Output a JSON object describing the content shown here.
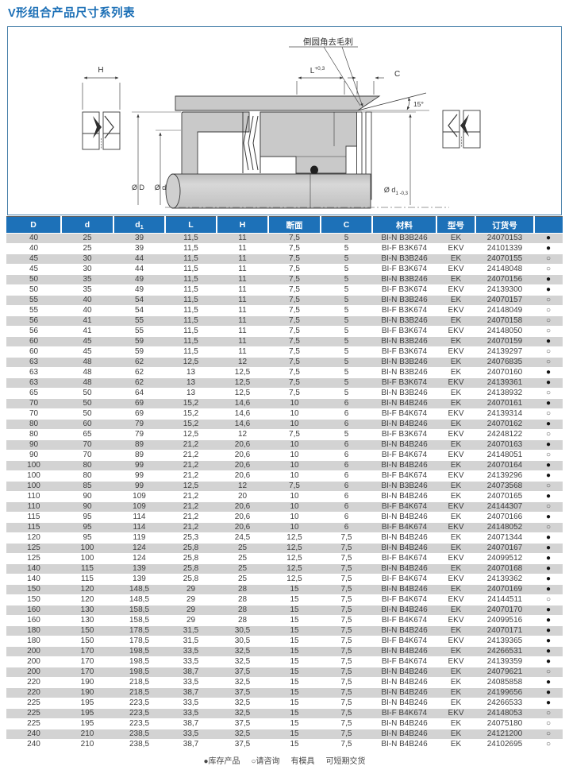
{
  "page": {
    "title": "V形组合产品尺寸系列表"
  },
  "diagram": {
    "labels": {
      "h": "H",
      "deburr": "倒圆角去毛刺",
      "angle": "15°",
      "c": "C",
      "dia_outer": "Ø D",
      "dia_inner": "Ø d"
    },
    "dim_l": {
      "base": "L",
      "sup": "+0,3"
    },
    "dim_d1": {
      "base": "Ø d",
      "sub": "1",
      "tol": " -0,3"
    }
  },
  "table": {
    "headers": [
      {
        "t": "D"
      },
      {
        "t": "d"
      },
      {
        "t": "d",
        "sub": "1"
      },
      {
        "t": "L"
      },
      {
        "t": "H"
      },
      {
        "t": "断面"
      },
      {
        "t": "C"
      },
      {
        "t": "材料"
      },
      {
        "t": "型号"
      },
      {
        "t": "订货号"
      },
      {
        "t": ""
      }
    ],
    "rows": [
      [
        "40",
        "25",
        "39",
        "11,5",
        "11",
        "7,5",
        "5",
        "BI-N B3B246",
        "EK",
        "24070153",
        "●"
      ],
      [
        "40",
        "25",
        "39",
        "11,5",
        "11",
        "7,5",
        "5",
        "BI-F B3K674",
        "EKV",
        "24101339",
        "●"
      ],
      [
        "45",
        "30",
        "44",
        "11,5",
        "11",
        "7,5",
        "5",
        "BI-N B3B246",
        "EK",
        "24070155",
        "○"
      ],
      [
        "45",
        "30",
        "44",
        "11,5",
        "11",
        "7,5",
        "5",
        "BI-F B3K674",
        "EKV",
        "24148048",
        "○"
      ],
      [
        "50",
        "35",
        "49",
        "11,5",
        "11",
        "7,5",
        "5",
        "BI-N B3B246",
        "EK",
        "24070156",
        "●"
      ],
      [
        "50",
        "35",
        "49",
        "11,5",
        "11",
        "7,5",
        "5",
        "BI-F B3K674",
        "EKV",
        "24139300",
        "●"
      ],
      [
        "55",
        "40",
        "54",
        "11,5",
        "11",
        "7,5",
        "5",
        "BI-N B3B246",
        "EK",
        "24070157",
        "○"
      ],
      [
        "55",
        "40",
        "54",
        "11,5",
        "11",
        "7,5",
        "5",
        "BI-F B3K674",
        "EKV",
        "24148049",
        "○"
      ],
      [
        "56",
        "41",
        "55",
        "11,5",
        "11",
        "7,5",
        "5",
        "BI-N B3B246",
        "EK",
        "24070158",
        "○"
      ],
      [
        "56",
        "41",
        "55",
        "11,5",
        "11",
        "7,5",
        "5",
        "BI-F B3K674",
        "EKV",
        "24148050",
        "○"
      ],
      [
        "60",
        "45",
        "59",
        "11,5",
        "11",
        "7,5",
        "5",
        "BI-N B3B246",
        "EK",
        "24070159",
        "●"
      ],
      [
        "60",
        "45",
        "59",
        "11,5",
        "11",
        "7,5",
        "5",
        "BI-F B3K674",
        "EKV",
        "24139297",
        "○"
      ],
      [
        "63",
        "48",
        "62",
        "12,5",
        "12",
        "7,5",
        "5",
        "BI-N B3B246",
        "EK",
        "24076835",
        "○"
      ],
      [
        "63",
        "48",
        "62",
        "13",
        "12,5",
        "7,5",
        "5",
        "BI-N B3B246",
        "EK",
        "24070160",
        "●"
      ],
      [
        "63",
        "48",
        "62",
        "13",
        "12,5",
        "7,5",
        "5",
        "BI-F B3K674",
        "EKV",
        "24139361",
        "●"
      ],
      [
        "65",
        "50",
        "64",
        "13",
        "12,5",
        "7,5",
        "5",
        "BI-N B3B246",
        "EK",
        "24138932",
        "○"
      ],
      [
        "70",
        "50",
        "69",
        "15,2",
        "14,6",
        "10",
        "6",
        "BI-N B4B246",
        "EK",
        "24070161",
        "●"
      ],
      [
        "70",
        "50",
        "69",
        "15,2",
        "14,6",
        "10",
        "6",
        "BI-F B4K674",
        "EKV",
        "24139314",
        "○"
      ],
      [
        "80",
        "60",
        "79",
        "15,2",
        "14,6",
        "10",
        "6",
        "BI-N B4B246",
        "EK",
        "24070162",
        "●"
      ],
      [
        "80",
        "65",
        "79",
        "12,5",
        "12",
        "7,5",
        "5",
        "BI-F B3K674",
        "EKV",
        "24248122",
        "○"
      ],
      [
        "90",
        "70",
        "89",
        "21,2",
        "20,6",
        "10",
        "6",
        "BI-N B4B246",
        "EK",
        "24070163",
        "●"
      ],
      [
        "90",
        "70",
        "89",
        "21,2",
        "20,6",
        "10",
        "6",
        "BI-F B4K674",
        "EKV",
        "24148051",
        "○"
      ],
      [
        "100",
        "80",
        "99",
        "21,2",
        "20,6",
        "10",
        "6",
        "BI-N B4B246",
        "EK",
        "24070164",
        "●"
      ],
      [
        "100",
        "80",
        "99",
        "21,2",
        "20,6",
        "10",
        "6",
        "BI-F B4K674",
        "EKV",
        "24139296",
        "●"
      ],
      [
        "100",
        "85",
        "99",
        "12,5",
        "12",
        "7,5",
        "6",
        "BI-N B3B246",
        "EK",
        "24073568",
        "○"
      ],
      [
        "110",
        "90",
        "109",
        "21,2",
        "20",
        "10",
        "6",
        "BI-N B4B246",
        "EK",
        "24070165",
        "●"
      ],
      [
        "110",
        "90",
        "109",
        "21,2",
        "20,6",
        "10",
        "6",
        "BI-F B4K674",
        "EKV",
        "24144307",
        "○"
      ],
      [
        "115",
        "95",
        "114",
        "21,2",
        "20,6",
        "10",
        "6",
        "BI-N B4B246",
        "EK",
        "24070166",
        "●"
      ],
      [
        "115",
        "95",
        "114",
        "21,2",
        "20,6",
        "10",
        "6",
        "BI-F B4K674",
        "EKV",
        "24148052",
        "○"
      ],
      [
        "120",
        "95",
        "119",
        "25,3",
        "24,5",
        "12,5",
        "7,5",
        "BI-N B4B246",
        "EK",
        "24071344",
        "●"
      ],
      [
        "125",
        "100",
        "124",
        "25,8",
        "25",
        "12,5",
        "7,5",
        "BI-N B4B246",
        "EK",
        "24070167",
        "●"
      ],
      [
        "125",
        "100",
        "124",
        "25,8",
        "25",
        "12,5",
        "7,5",
        "BI-F B4K674",
        "EKV",
        "24099512",
        "●"
      ],
      [
        "140",
        "115",
        "139",
        "25,8",
        "25",
        "12,5",
        "7,5",
        "BI-N B4B246",
        "EK",
        "24070168",
        "●"
      ],
      [
        "140",
        "115",
        "139",
        "25,8",
        "25",
        "12,5",
        "7,5",
        "BI-F B4K674",
        "EKV",
        "24139362",
        "●"
      ],
      [
        "150",
        "120",
        "148,5",
        "29",
        "28",
        "15",
        "7,5",
        "BI-N B4B246",
        "EK",
        "24070169",
        "●"
      ],
      [
        "150",
        "120",
        "148,5",
        "29",
        "28",
        "15",
        "7,5",
        "BI-F B4K674",
        "EKV",
        "24144511",
        "○"
      ],
      [
        "160",
        "130",
        "158,5",
        "29",
        "28",
        "15",
        "7,5",
        "BI-N B4B246",
        "EK",
        "24070170",
        "●"
      ],
      [
        "160",
        "130",
        "158,5",
        "29",
        "28",
        "15",
        "7,5",
        "BI-F B4K674",
        "EKV",
        "24099516",
        "●"
      ],
      [
        "180",
        "150",
        "178,5",
        "31,5",
        "30,5",
        "15",
        "7,5",
        "BI-N B4B246",
        "EK",
        "24070171",
        "●"
      ],
      [
        "180",
        "150",
        "178,5",
        "31,5",
        "30,5",
        "15",
        "7,5",
        "BI-F B4K674",
        "EKV",
        "24139365",
        "●"
      ],
      [
        "200",
        "170",
        "198,5",
        "33,5",
        "32,5",
        "15",
        "7,5",
        "BI-N B4B246",
        "EK",
        "24266531",
        "●"
      ],
      [
        "200",
        "170",
        "198,5",
        "33,5",
        "32,5",
        "15",
        "7,5",
        "BI-F B4K674",
        "EKV",
        "24139359",
        "●"
      ],
      [
        "200",
        "170",
        "198,5",
        "38,7",
        "37,5",
        "15",
        "7,5",
        "BI-N B4B246",
        "EK",
        "24079621",
        "○"
      ],
      [
        "220",
        "190",
        "218,5",
        "33,5",
        "32,5",
        "15",
        "7,5",
        "BI-N B4B246",
        "EK",
        "24085858",
        "●"
      ],
      [
        "220",
        "190",
        "218,5",
        "38,7",
        "37,5",
        "15",
        "7,5",
        "BI-N B4B246",
        "EK",
        "24199656",
        "●"
      ],
      [
        "225",
        "195",
        "223,5",
        "33,5",
        "32,5",
        "15",
        "7,5",
        "BI-N B4B246",
        "EK",
        "24266533",
        "●"
      ],
      [
        "225",
        "195",
        "223,5",
        "33,5",
        "32,5",
        "15",
        "7,5",
        "BI-F B4K674",
        "EKV",
        "24148053",
        "○"
      ],
      [
        "225",
        "195",
        "223,5",
        "38,7",
        "37,5",
        "15",
        "7,5",
        "BI-N B4B246",
        "EK",
        "24075180",
        "○"
      ],
      [
        "240",
        "210",
        "238,5",
        "33,5",
        "32,5",
        "15",
        "7,5",
        "BI-N B4B246",
        "EK",
        "24121200",
        "○"
      ],
      [
        "240",
        "210",
        "238,5",
        "38,7",
        "37,5",
        "15",
        "7,5",
        "BI-N B4B246",
        "EK",
        "24102695",
        "○"
      ]
    ]
  },
  "footer": {
    "stock": "●库存产品",
    "inquiry": "○请咨询",
    "mold": "有模具",
    "delivery": "可短期交货"
  },
  "colors": {
    "accent": "#1d71b8",
    "row_alt": "#d3d3d3",
    "frame": "#4a82ab"
  }
}
